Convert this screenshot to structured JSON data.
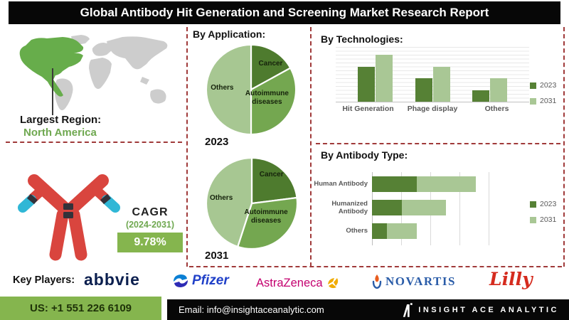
{
  "title": "Global Antibody Hit Generation and Screening Market Research Report",
  "region": {
    "label": "Largest Region:",
    "value": "North America"
  },
  "cagr": {
    "label": "CAGR",
    "period": "(2024-2031)",
    "value": "9.78%"
  },
  "key_players": {
    "label": "Key Players:",
    "companies": [
      "abbvie",
      "Pfizer",
      "AstraZeneca",
      "NOVARTIS",
      "Lilly"
    ]
  },
  "footer": {
    "phone": "US: +1 551 226 6109",
    "email": "Email: info@insightaceanalytic.com",
    "brand": "INSIGHT ACE ANALYTIC"
  },
  "colors": {
    "accent_green": "#85b54e",
    "pie_dark_green": "#4e7b2e",
    "pie_mid_green": "#74a750",
    "pie_light_green": "#a7c792",
    "bar_2023": "#568135",
    "bar_2031": "#a9c795",
    "map_green": "#67ad4b",
    "map_gray": "#cdcdcd",
    "dashed_red": "#a03a3a",
    "antibody_red": "#d9453e",
    "antibody_cyan": "#30b7d6"
  },
  "chart_data": [
    {
      "type": "pie",
      "title": "By Application:",
      "year": "2023",
      "labels": [
        "Cancer",
        "Autoimmune diseases",
        "Others"
      ],
      "values": [
        17,
        33,
        50
      ],
      "colors": [
        "#4e7b2e",
        "#74a750",
        "#a7c792"
      ],
      "legend_position": "none"
    },
    {
      "type": "pie",
      "title": "By Application:",
      "year": "2031",
      "labels": [
        "Cancer",
        "Autoimmune diseases",
        "Others"
      ],
      "values": [
        23,
        32,
        45
      ],
      "colors": [
        "#4e7b2e",
        "#74a750",
        "#a7c792"
      ],
      "legend_position": "none"
    },
    {
      "type": "bar",
      "title": "By Technologies:",
      "categories": [
        "Hit Generation",
        "Phage display",
        "Others"
      ],
      "series": [
        {
          "name": "2023",
          "values": [
            45,
            30,
            15
          ]
        },
        {
          "name": "2031",
          "values": [
            60,
            45,
            30
          ]
        }
      ],
      "ylim": [
        0,
        70
      ],
      "grid": true,
      "legend_position": "right"
    },
    {
      "type": "bar",
      "orientation": "horizontal-stacked",
      "title": "By Antibody Type:",
      "categories": [
        "Human Antibody",
        "Humanized Antibody",
        "Others"
      ],
      "series": [
        {
          "name": "2023",
          "values": [
            15,
            10,
            5
          ]
        },
        {
          "name": "2031",
          "values": [
            20,
            15,
            10
          ]
        }
      ],
      "xlim": [
        0,
        40
      ],
      "grid": true,
      "legend_position": "right"
    }
  ]
}
